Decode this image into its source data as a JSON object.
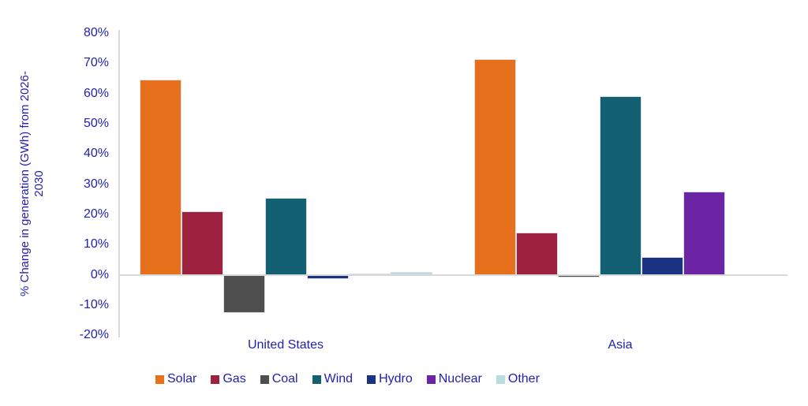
{
  "chart_data": {
    "type": "bar",
    "title": "",
    "ylabel": "% Change in generation (GWh) from 2026-2030",
    "ylabel_lines": [
      "% Change in generation (GWh) from 2026-",
      "2030"
    ],
    "categories": [
      "United States",
      "Asia"
    ],
    "series": [
      {
        "name": "Solar",
        "color": "#E7701D",
        "values": [
          64.5,
          71.5
        ]
      },
      {
        "name": "Gas",
        "color": "#9E2240",
        "values": [
          21.0,
          14.0
        ]
      },
      {
        "name": "Coal",
        "color": "#4F4F4F",
        "values": [
          -12.5,
          -1.0
        ]
      },
      {
        "name": "Wind",
        "color": "#136072",
        "values": [
          25.5,
          59.0
        ]
      },
      {
        "name": "Hydro",
        "color": "#1B3382",
        "values": [
          -1.5,
          6.0
        ]
      },
      {
        "name": "Nuclear",
        "color": "#6B24A3",
        "values": [
          0.5,
          27.5
        ]
      },
      {
        "name": "Other",
        "color": "#BADCE0",
        "values": [
          1.0,
          0.0
        ]
      }
    ],
    "y_axis": {
      "min": -20,
      "max": 80,
      "step": 10,
      "tick_labels": [
        "80%",
        "70%",
        "60%",
        "50%",
        "40%",
        "30%",
        "20%",
        "10%",
        "0%",
        "-10%",
        "-20%"
      ]
    },
    "grid": false,
    "legend_position": "bottom",
    "colors": {
      "text": "#1F1FAF",
      "axis_line": "#D9D9D9"
    }
  }
}
